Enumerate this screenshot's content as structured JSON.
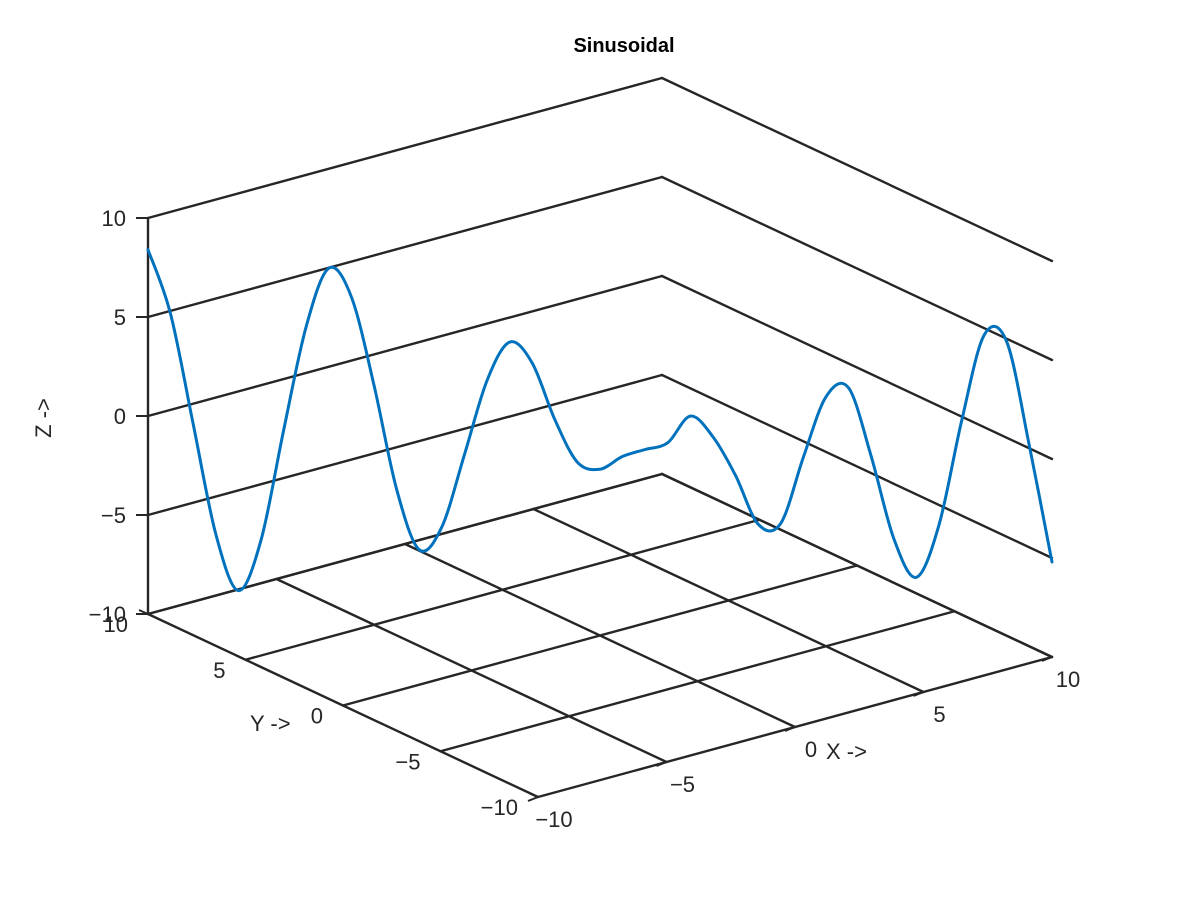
{
  "chart_data": {
    "type": "line",
    "title": "Sinusoidal",
    "xlabel": "X ->",
    "ylabel": "Y ->",
    "zlabel": "Z ->",
    "xlim": [
      -10,
      10
    ],
    "ylim": [
      -10,
      10
    ],
    "zlim": [
      -10,
      10
    ],
    "xticks": [
      -10,
      -5,
      0,
      5,
      10
    ],
    "yticks": [
      -10,
      -5,
      0,
      5,
      10
    ],
    "zticks": [
      -10,
      -5,
      0,
      5,
      10
    ],
    "xtick_labels": [
      "−10",
      "−5",
      "0",
      "5",
      "10"
    ],
    "ytick_labels": [
      "−10",
      "−5",
      "0",
      "5",
      "10"
    ],
    "ztick_labels": [
      "−10",
      "−5",
      "0",
      "5",
      "10"
    ],
    "grid": true,
    "series": [
      {
        "color": "#0072BD",
        "x": [
          -10,
          -9.5,
          -9,
          -8.5,
          -8,
          -7.5,
          -7,
          -6.5,
          -6,
          -5.5,
          -5,
          -4.5,
          -4,
          -3.5,
          -3,
          -2.5,
          -2,
          -1.5,
          -1,
          -0.5,
          0,
          0.5,
          1,
          1.5,
          2,
          2.5,
          3,
          3.5,
          4,
          4.5,
          5,
          5.5,
          6,
          6.5,
          7,
          7.5,
          8,
          8.5,
          9,
          9.5,
          10
        ],
        "y": [
          10,
          9.5,
          9,
          8.5,
          8,
          7.5,
          7,
          6.5,
          6,
          5.5,
          5,
          4.5,
          4,
          3.5,
          3,
          2.5,
          2,
          1.5,
          1,
          0.5,
          0,
          -0.5,
          -1,
          -1.5,
          -2,
          -2.5,
          -3,
          -3.5,
          -4,
          -4.5,
          -5,
          -5.5,
          -6,
          -6.5,
          -7,
          -7.5,
          -8,
          -8.5,
          -9,
          -9.5,
          -10
        ],
        "z": [
          8.4,
          5.2,
          -0.3,
          -5.8,
          -8.6,
          -6.0,
          -0.4,
          4.9,
          7.9,
          6.5,
          2.1,
          -3.1,
          -6.1,
          -4.9,
          -1.2,
          2.6,
          4.6,
          3.6,
          0.8,
          -1.3,
          -1.6,
          -0.9,
          -0.5,
          -0.1,
          1.3,
          0.3,
          -1.6,
          -4.0,
          -3.9,
          -0.5,
          2.6,
          3.1,
          -0.3,
          -4.4,
          -6.3,
          -3.6,
          1.7,
          6.1,
          5.8,
          0.6,
          -5.2
        ]
      }
    ]
  }
}
